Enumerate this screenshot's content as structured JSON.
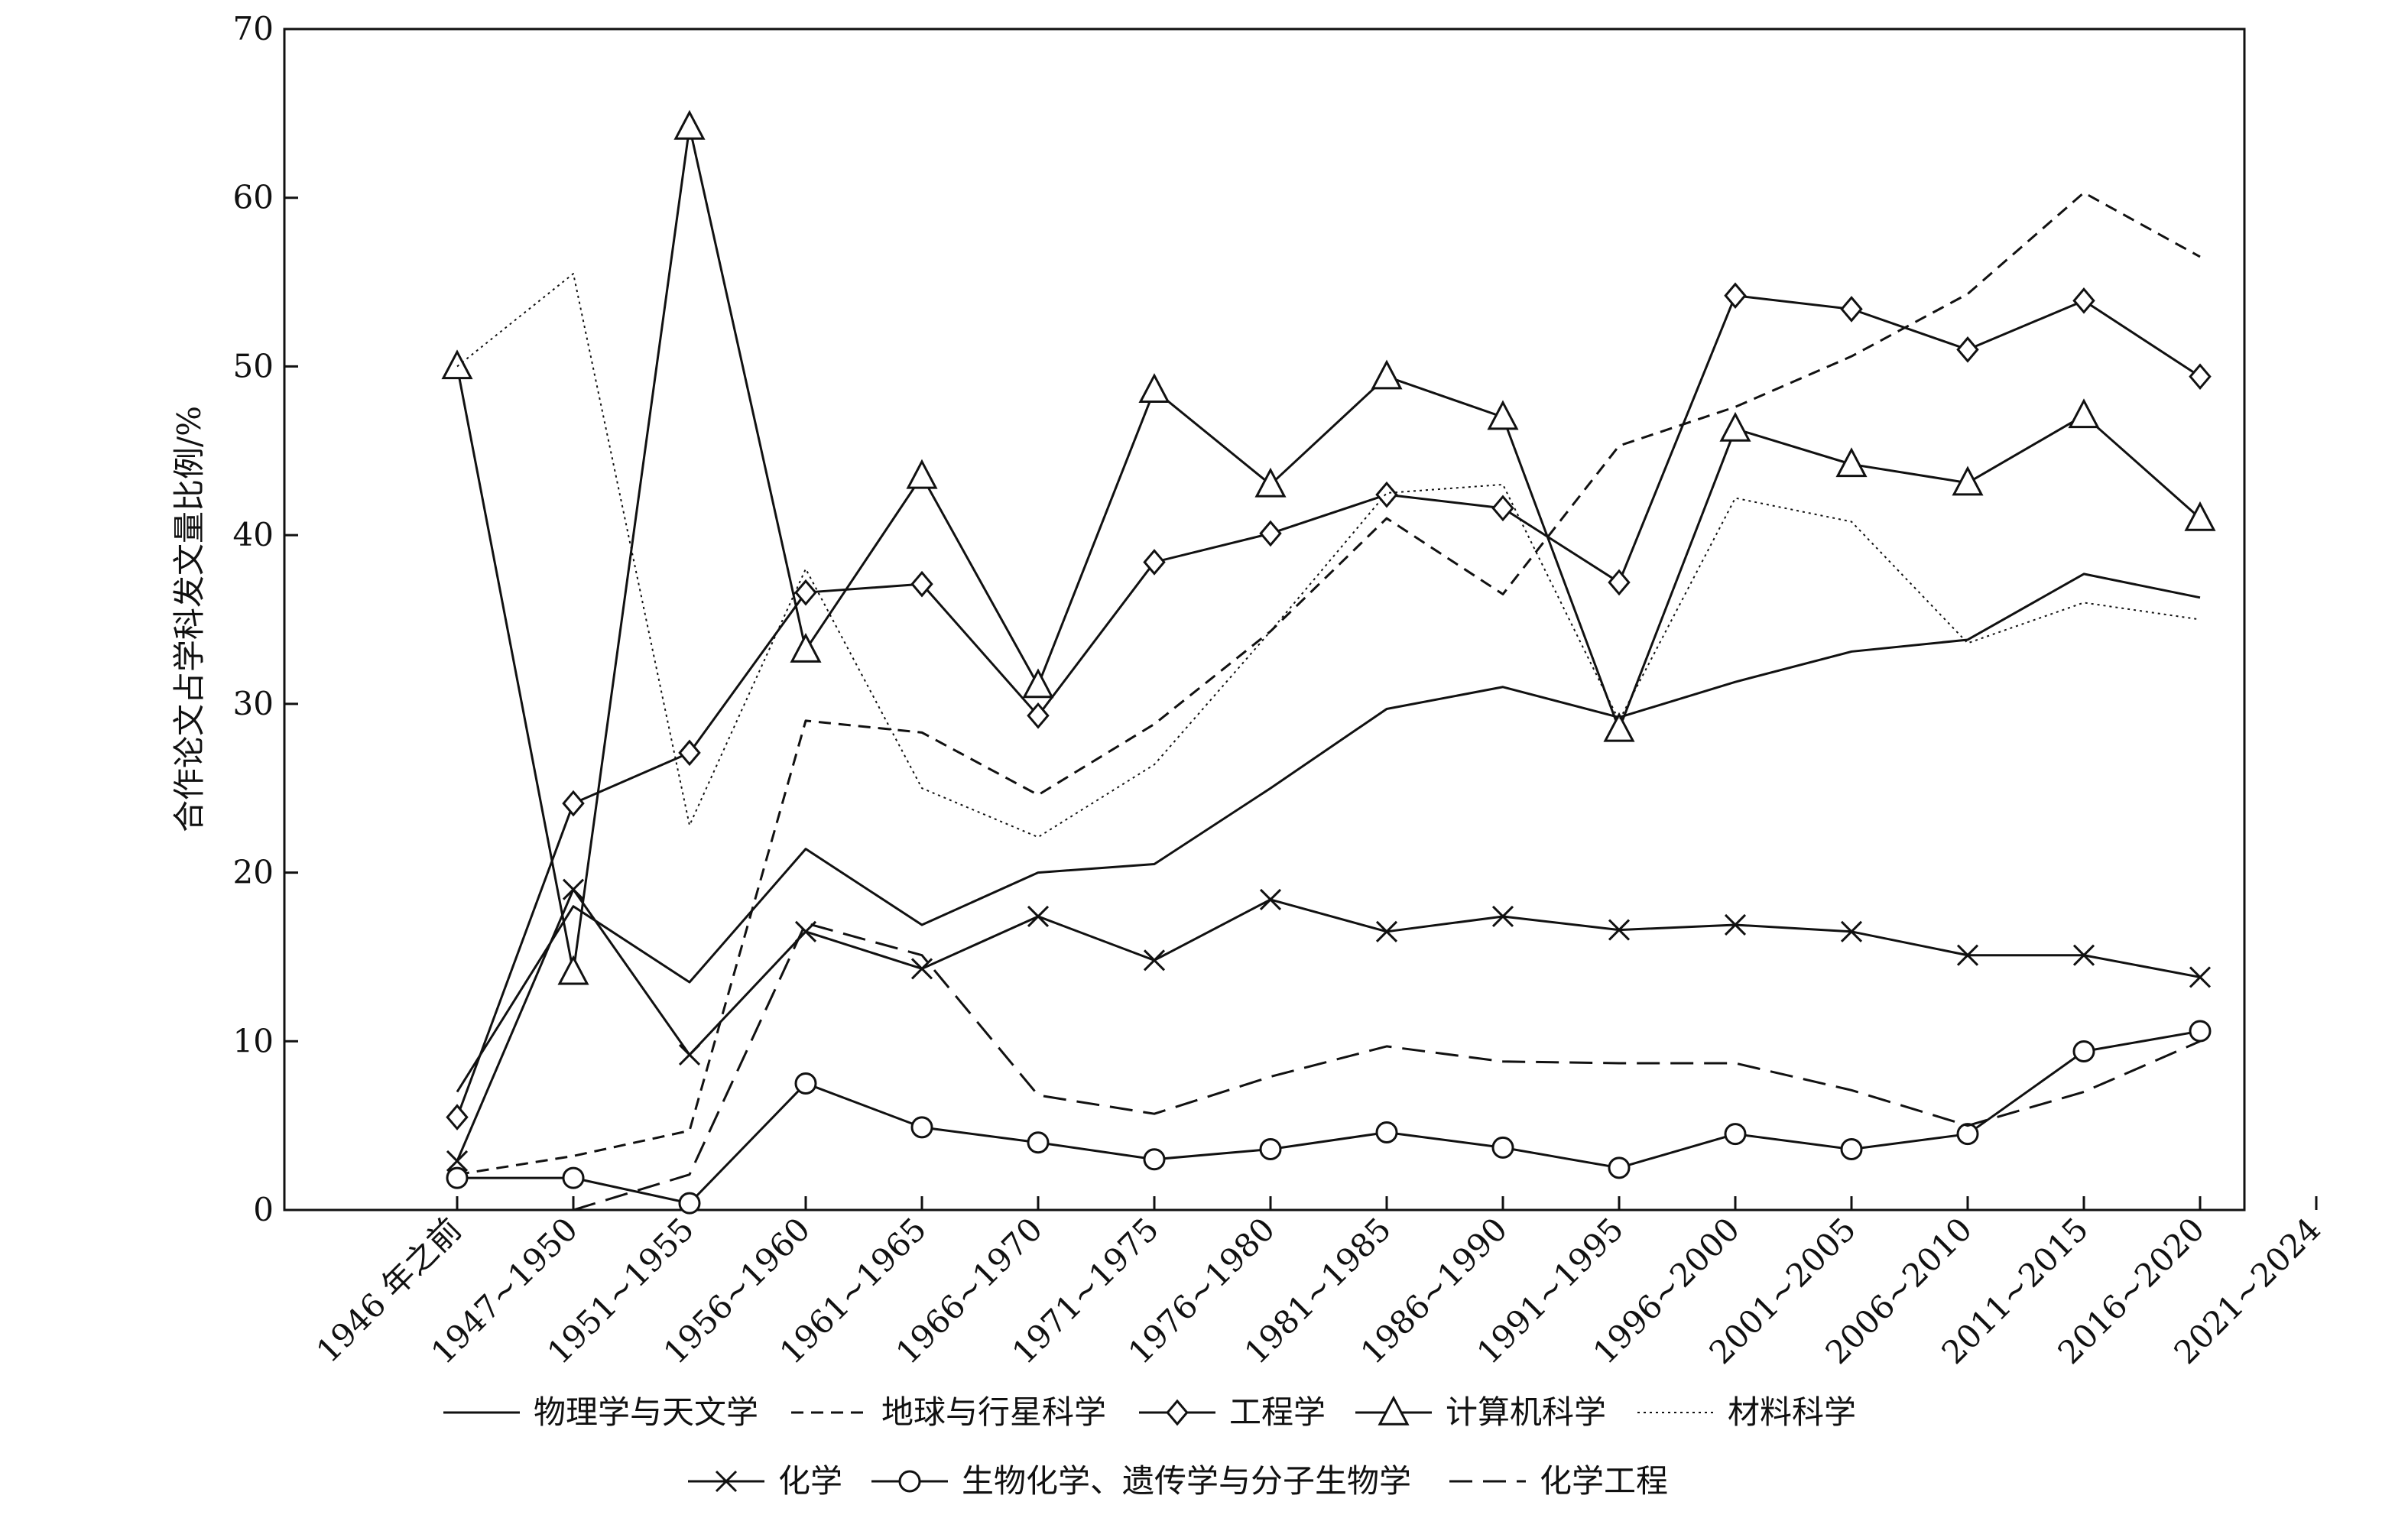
{
  "chart_data": {
    "type": "line",
    "ylabel": "合作论文占学科发文量比例/%",
    "xlabel": "",
    "ylim": [
      0,
      70
    ],
    "yticks": [
      0,
      10,
      20,
      30,
      40,
      50,
      60,
      70
    ],
    "grid": false,
    "legend_position": "bottom",
    "categories": [
      "1946 年之前",
      "1947~1950",
      "1951~1955",
      "1956~1960",
      "1961~1965",
      "1966~1970",
      "1971~1975",
      "1976~1980",
      "1981~1985",
      "1986~1990",
      "1991~1995",
      "1996~2000",
      "2001~2005",
      "2006~2010",
      "2011~2015",
      "2016~2020",
      "2021~2024"
    ],
    "series": [
      {
        "name": "物理学与天文学",
        "style": "solid",
        "marker": "none",
        "values": [
          7,
          18,
          13.5,
          21.4,
          16.9,
          20,
          20.5,
          25,
          29.7,
          31,
          29.2,
          31.3,
          33.1,
          33.8,
          37.7,
          36.3,
          null
        ]
      },
      {
        "name": "地球与行星科学",
        "style": "short-dash",
        "marker": "none",
        "values": [
          2.1,
          3.2,
          4.7,
          29,
          28.3,
          24.6,
          28.8,
          34.3,
          41,
          36.5,
          45.3,
          47.6,
          50.6,
          54.3,
          60.3,
          56.5,
          null
        ]
      },
      {
        "name": "工程学",
        "style": "solid",
        "marker": "diamond",
        "values": [
          5.5,
          24.1,
          27.1,
          36.6,
          37.1,
          29.3,
          38.4,
          40.1,
          42.4,
          41.6,
          37.2,
          54.2,
          53.4,
          51,
          53.9,
          49.4,
          null
        ]
      },
      {
        "name": "计算机科学",
        "style": "solid",
        "marker": "triangle",
        "values": [
          50,
          14.1,
          64.2,
          33.2,
          43.5,
          31.1,
          48.6,
          43,
          49.4,
          47,
          28.5,
          46.3,
          44.2,
          43.1,
          47.1,
          41,
          null
        ]
      },
      {
        "name": "材料科学",
        "style": "dotted",
        "marker": "none",
        "values": [
          50,
          55.5,
          22.8,
          38,
          25,
          22.1,
          26.4,
          34.3,
          42.5,
          43,
          29,
          42.2,
          40.8,
          33.6,
          36,
          35,
          null
        ]
      },
      {
        "name": "化学",
        "style": "solid",
        "marker": "x",
        "values": [
          2.9,
          19,
          9.2,
          16.5,
          14.3,
          17.4,
          14.8,
          18.4,
          16.5,
          17.4,
          16.6,
          16.9,
          16.5,
          15.1,
          15.1,
          13.8,
          null
        ]
      },
      {
        "name": "生物化学、遗传学与分子生物学",
        "style": "solid",
        "marker": "circle",
        "values": [
          1.9,
          1.9,
          0.4,
          7.5,
          4.9,
          4,
          3,
          3.6,
          4.6,
          3.7,
          2.5,
          4.5,
          3.6,
          4.5,
          9.4,
          10.6,
          null
        ]
      },
      {
        "name": "化学工程",
        "style": "long-dash",
        "marker": "none",
        "values": [
          null,
          0,
          2.1,
          17,
          15.1,
          6.8,
          5.7,
          7.9,
          9.7,
          8.8,
          8.7,
          8.7,
          7.1,
          5,
          7,
          10,
          null
        ]
      }
    ]
  }
}
